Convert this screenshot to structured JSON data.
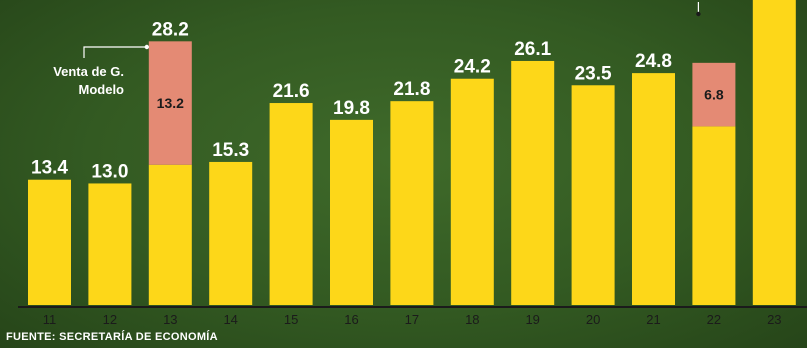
{
  "chart_data": {
    "type": "bar",
    "categories": [
      "11",
      "12",
      "13",
      "14",
      "15",
      "16",
      "17",
      "18",
      "19",
      "20",
      "21",
      "22",
      "23"
    ],
    "values": [
      13.4,
      13.0,
      28.2,
      15.3,
      21.6,
      19.8,
      21.8,
      24.2,
      26.1,
      23.5,
      24.8,
      null,
      null
    ],
    "highlight_segments": [
      {
        "category": "13",
        "value": 13.2,
        "label": "13.2"
      },
      {
        "category": "22",
        "value": 6.8,
        "label": "6.8"
      }
    ],
    "value_labels": [
      "13.4",
      "13.0",
      "28.2",
      "15.3",
      "21.6",
      "19.8",
      "21.8",
      "24.2",
      "26.1",
      "23.5",
      "24.8",
      "",
      ""
    ],
    "annotations": [
      {
        "category": "13",
        "lines": [
          "Venta de G.",
          "Modelo"
        ]
      }
    ],
    "ylim": [
      0,
      30
    ],
    "grid": false,
    "colors": {
      "bar": "#fdd719",
      "highlight": "#e48a74",
      "axis": "#1b1b1b"
    }
  },
  "source": "FUENTE: SECRETARÍA DE ECONOMÍA"
}
